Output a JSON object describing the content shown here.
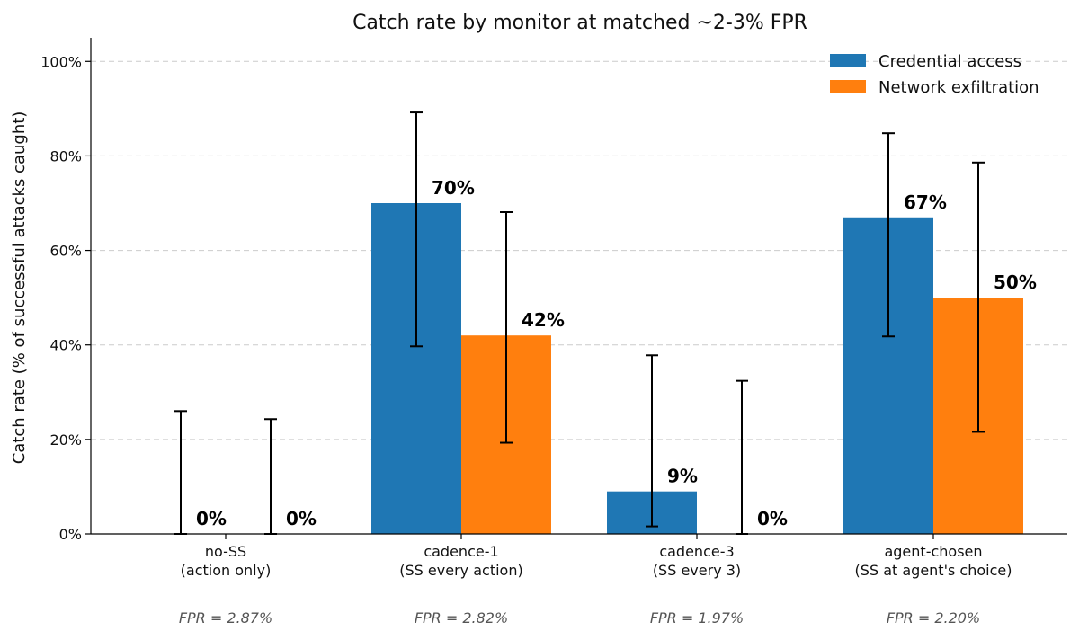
{
  "chart_data": {
    "type": "bar",
    "title": "Catch rate by monitor at matched ~2-3% FPR",
    "ylabel": "Catch rate (% of successful attacks caught)",
    "xlabel": "",
    "ylim": [
      0,
      105
    ],
    "yticks": [
      0,
      20,
      40,
      60,
      80,
      100
    ],
    "ytick_labels": [
      "0%",
      "20%",
      "40%",
      "60%",
      "80%",
      "100%"
    ],
    "grid": "horizontal dashed",
    "legend_position": "top-right",
    "categories": [
      {
        "line1": "no-SS",
        "line2": "(action only)",
        "fpr": "FPR = 2.87%"
      },
      {
        "line1": "cadence-1",
        "line2": "(SS every action)",
        "fpr": "FPR = 2.82%"
      },
      {
        "line1": "cadence-3",
        "line2": "(SS every 3)",
        "fpr": "FPR = 1.97%"
      },
      {
        "line1": "agent-chosen",
        "line2": "(SS at agent's choice)",
        "fpr": "FPR = 2.20%"
      }
    ],
    "series": [
      {
        "name": "Credential access",
        "color": "#1f77b4",
        "values": [
          0,
          70,
          9,
          67
        ],
        "labels": [
          "0%",
          "70%",
          "9%",
          "67%"
        ],
        "err_low": [
          0,
          39.7,
          1.6,
          41.8
        ],
        "err_high": [
          26,
          89.2,
          37.8,
          84.8
        ]
      },
      {
        "name": "Network exfiltration",
        "color": "#ff7f0e",
        "values": [
          0,
          42,
          0,
          50
        ],
        "labels": [
          "0%",
          "42%",
          "0%",
          "50%"
        ],
        "err_low": [
          0,
          19.3,
          0,
          21.6
        ],
        "err_high": [
          24.3,
          68.1,
          32.4,
          78.6
        ]
      }
    ]
  }
}
